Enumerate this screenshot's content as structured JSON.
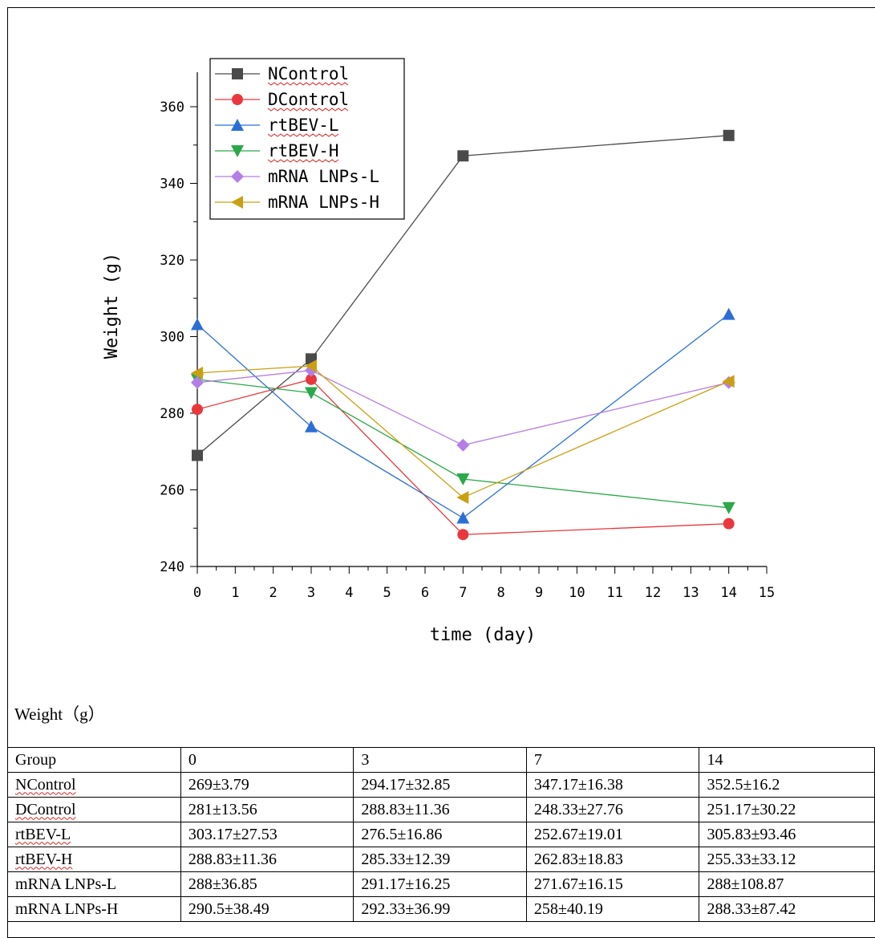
{
  "chart_data": {
    "type": "line",
    "xlabel": "time (day)",
    "ylabel": "Weight (g)",
    "xlim": [
      0,
      15
    ],
    "ylim": [
      240,
      370
    ],
    "xticks": [
      0,
      1,
      2,
      3,
      4,
      5,
      6,
      7,
      8,
      9,
      10,
      11,
      12,
      13,
      14,
      15
    ],
    "yticks": [
      240,
      260,
      280,
      300,
      320,
      340,
      360
    ],
    "x": [
      0,
      3,
      7,
      14
    ],
    "grid": false,
    "legend": "top-left",
    "series": [
      {
        "name": "NControl",
        "values": [
          269,
          294.17,
          347.17,
          352.5
        ],
        "color": "#4a4a4a",
        "marker": "square"
      },
      {
        "name": "DControl",
        "values": [
          281,
          288.83,
          248.33,
          251.17
        ],
        "color": "#e8383d",
        "marker": "circle"
      },
      {
        "name": "rtBEV-L",
        "values": [
          303.17,
          276.5,
          252.67,
          305.83
        ],
        "color": "#2b6fd6",
        "marker": "triangle-up"
      },
      {
        "name": "rtBEV-H",
        "values": [
          288.83,
          285.33,
          262.83,
          255.33
        ],
        "color": "#2aa84a",
        "marker": "triangle-down"
      },
      {
        "name": "mRNA LNPs-L",
        "values": [
          288,
          291.17,
          271.67,
          288
        ],
        "color": "#b57ee6",
        "marker": "diamond"
      },
      {
        "name": "mRNA LNPs-H",
        "values": [
          290.5,
          292.33,
          258,
          288.33
        ],
        "color": "#c9a012",
        "marker": "triangle-left"
      }
    ]
  },
  "table": {
    "caption": "Weight（g）",
    "header": [
      "Group",
      "0",
      "3",
      "7",
      "14"
    ],
    "rows": [
      [
        "NControl",
        "269±3.79",
        "294.17±32.85",
        "347.17±16.38",
        "352.5±16.2"
      ],
      [
        "DControl",
        "281±13.56",
        "288.83±11.36",
        "248.33±27.76",
        "251.17±30.22"
      ],
      [
        "rtBEV-L",
        "303.17±27.53",
        "276.5±16.86",
        "252.67±19.01",
        "305.83±93.46"
      ],
      [
        "rtBEV-H",
        "288.83±11.36",
        "285.33±12.39",
        "262.83±18.83",
        "255.33±33.12"
      ],
      [
        "mRNA LNPs-L",
        "288±36.85",
        "291.17±16.25",
        "271.67±16.15",
        "288±108.87"
      ],
      [
        "mRNA LNPs-H",
        "290.5±38.49",
        "292.33±36.99",
        "258±40.19",
        "288.33±87.42"
      ]
    ]
  }
}
